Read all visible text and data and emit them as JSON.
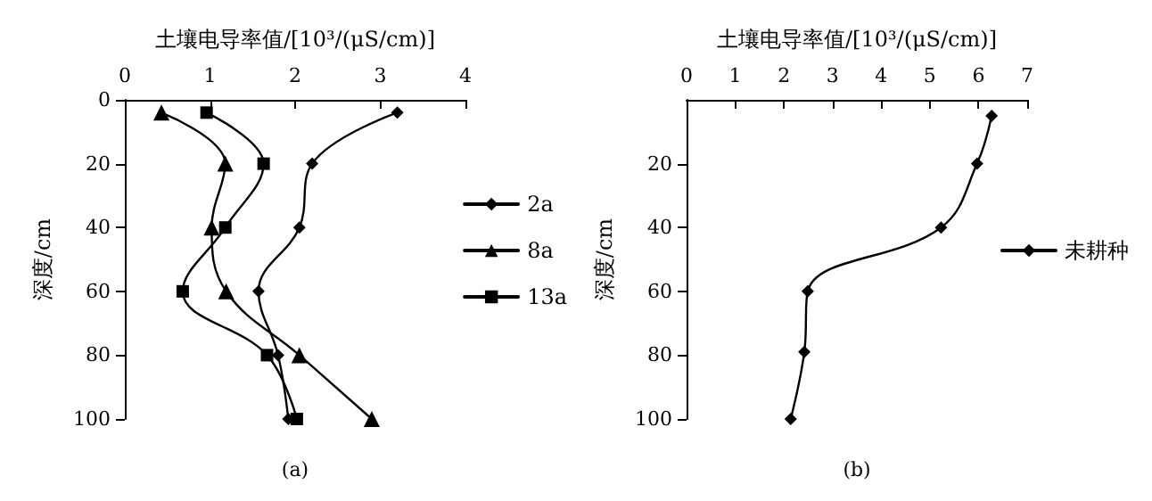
{
  "chart_data": [
    {
      "type": "line",
      "xlabel": "土壤电导率值/[10³/(μS/cm)]",
      "ylabel": "深度/cm",
      "annotations": [
        "(a)"
      ],
      "xlim": [
        0,
        4
      ],
      "xticks": [
        0,
        1,
        2,
        3,
        4
      ],
      "ylim": [
        100,
        0
      ],
      "yticks": [
        0,
        20,
        40,
        60,
        80,
        100
      ],
      "grid": false,
      "legend": "right",
      "line_style": "solid",
      "series": [
        {
          "name": "2a",
          "color": "#000000",
          "marker": "diamond",
          "x": [
            3.2,
            2.2,
            2.05,
            1.57,
            1.8,
            1.92
          ],
          "values": [
            4,
            20,
            40,
            60,
            80,
            100
          ]
        },
        {
          "name": "8a",
          "color": "#000000",
          "marker": "triangle",
          "x": [
            0.43,
            1.18,
            1.02,
            1.19,
            2.05,
            2.9
          ],
          "values": [
            4,
            20,
            40,
            60,
            80,
            100
          ]
        },
        {
          "name": "13a",
          "color": "#000000",
          "marker": "square",
          "x": [
            0.96,
            1.63,
            1.18,
            0.68,
            1.67,
            2.02
          ],
          "values": [
            4,
            20,
            40,
            60,
            80,
            100
          ]
        }
      ]
    },
    {
      "type": "line",
      "xlabel": "土壤电导率值/[10³/(μS/cm)]",
      "ylabel": "深度/cm",
      "annotations": [
        "(b)"
      ],
      "xlim": [
        0,
        7
      ],
      "xticks": [
        0,
        1,
        2,
        3,
        4,
        5,
        6,
        7
      ],
      "ylim": [
        100,
        0
      ],
      "yticks": [
        20,
        40,
        60,
        80,
        100
      ],
      "grid": false,
      "legend": "right",
      "line_style": "solid",
      "series": [
        {
          "name": "未耕种",
          "color": "#000000",
          "marker": "diamond",
          "x": [
            6.27,
            5.97,
            5.23,
            2.49,
            2.42,
            2.14
          ],
          "values": [
            5,
            20,
            40,
            60,
            79,
            100
          ]
        }
      ]
    }
  ]
}
